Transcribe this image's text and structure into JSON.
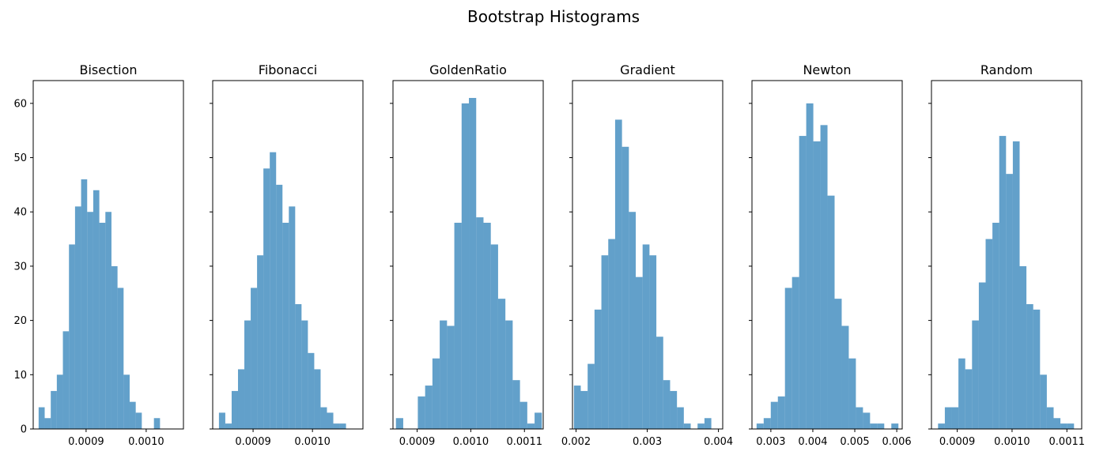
{
  "figure": {
    "title": "Bootstrap Histograms"
  },
  "colors": {
    "bar": "#1f77b4",
    "bar_opacity": 0.7
  },
  "chart_data": [
    {
      "type": "bar",
      "title": "Bisection",
      "ylim": [
        0,
        64.2
      ],
      "yticks": [
        0,
        10,
        20,
        30,
        40,
        50,
        60
      ],
      "xlim": [
        0.000812,
        0.001062
      ],
      "xticks": [
        0.0009,
        0.001
      ],
      "xtick_labels": [
        "0.0009",
        "0.0010"
      ],
      "bin_start": 0.000821,
      "bin_width": 1.01e-05,
      "counts": [
        4,
        2,
        7,
        10,
        18,
        34,
        41,
        46,
        40,
        44,
        38,
        40,
        30,
        26,
        10,
        5,
        3,
        0,
        0,
        2
      ]
    },
    {
      "type": "bar",
      "title": "Fibonacci",
      "ylim": [
        0,
        64.2
      ],
      "yticks": [
        0,
        10,
        20,
        30,
        40,
        50,
        60
      ],
      "xlim": [
        0.000832,
        0.001085
      ],
      "xticks": [
        0.0009,
        0.001
      ],
      "xtick_labels": [
        "0.0009",
        "0.0010"
      ],
      "bin_start": 0.0008425,
      "bin_width": 1.07e-05,
      "counts": [
        3,
        1,
        7,
        11,
        20,
        26,
        32,
        48,
        51,
        45,
        38,
        41,
        23,
        20,
        14,
        11,
        4,
        3,
        1,
        1
      ]
    },
    {
      "type": "bar",
      "title": "GoldenRatio",
      "ylim": [
        0,
        64.2
      ],
      "yticks": [
        0,
        10,
        20,
        30,
        40,
        50,
        60
      ],
      "xlim": [
        0.000855,
        0.001135
      ],
      "xticks": [
        0.0009,
        0.001,
        0.0011
      ],
      "xtick_labels": [
        "0.0009",
        "0.0010",
        "0.0011"
      ],
      "bin_start": 0.0008605,
      "bin_width": 1.36e-05,
      "counts": [
        2,
        0,
        0,
        6,
        8,
        13,
        20,
        19,
        38,
        60,
        61,
        39,
        38,
        34,
        24,
        20,
        9,
        5,
        1,
        3
      ]
    },
    {
      "type": "bar",
      "title": "Gradient",
      "ylim": [
        0,
        64.2
      ],
      "yticks": [
        0,
        10,
        20,
        30,
        40,
        50,
        60
      ],
      "xlim": [
        0.00195,
        0.00406
      ],
      "xticks": [
        0.002,
        0.003,
        0.004
      ],
      "xtick_labels": [
        "0.002",
        "0.003",
        "0.004"
      ],
      "bin_start": 0.00197,
      "bin_width": 9.65e-05,
      "counts": [
        8,
        7,
        12,
        22,
        32,
        35,
        57,
        52,
        40,
        28,
        34,
        32,
        17,
        9,
        7,
        4,
        1,
        0,
        1,
        2
      ]
    },
    {
      "type": "bar",
      "title": "Newton",
      "ylim": [
        0,
        64.2
      ],
      "yticks": [
        0,
        10,
        20,
        30,
        40,
        50,
        60
      ],
      "xlim": [
        0.00255,
        0.00613
      ],
      "xticks": [
        0.003,
        0.004,
        0.005,
        0.006
      ],
      "xtick_labels": [
        "0.003",
        "0.004",
        "0.005",
        "0.006"
      ],
      "bin_start": 0.00266,
      "bin_width": 0.000169,
      "counts": [
        1,
        2,
        5,
        6,
        26,
        28,
        54,
        60,
        53,
        56,
        43,
        24,
        19,
        13,
        4,
        3,
        1,
        1,
        0,
        1
      ]
    },
    {
      "type": "bar",
      "title": "Random",
      "ylim": [
        0,
        64.2
      ],
      "yticks": [
        0,
        10,
        20,
        30,
        40,
        50,
        60
      ],
      "xlim": [
        0.000853,
        0.001127
      ],
      "xticks": [
        0.0009,
        0.001,
        0.0011
      ],
      "xtick_labels": [
        "0.0009",
        "0.0010",
        "0.0011"
      ],
      "bin_start": 0.000865,
      "bin_width": 1.24e-05,
      "counts": [
        1,
        4,
        4,
        13,
        11,
        20,
        27,
        35,
        38,
        54,
        47,
        53,
        30,
        23,
        22,
        10,
        4,
        2,
        1,
        1
      ]
    }
  ]
}
